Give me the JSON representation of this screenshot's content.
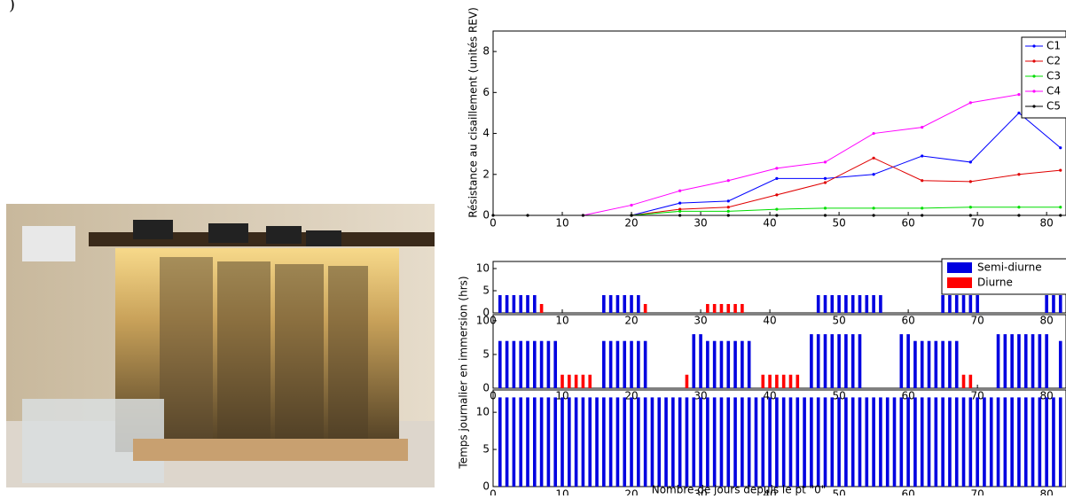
{
  "caption_fragment": ")",
  "chart_data": [
    {
      "type": "line",
      "ylabel": "Résistance au cisaillement (unités REV)",
      "x": [
        0,
        5,
        13,
        20,
        27,
        34,
        41,
        48,
        55,
        62,
        69,
        76,
        82
      ],
      "xlim": [
        0,
        82.8
      ],
      "xticks": [
        0,
        10,
        20,
        30,
        40,
        50,
        60,
        70,
        80
      ],
      "ylim": [
        0,
        9
      ],
      "yticks": [
        0,
        2,
        4,
        6,
        8
      ],
      "legend": "upper right",
      "series": [
        {
          "name": "C1",
          "color": "#0000ff",
          "values": [
            null,
            null,
            null,
            0,
            0.6,
            0.7,
            1.8,
            1.8,
            2.0,
            2.9,
            2.6,
            5.0,
            3.3
          ]
        },
        {
          "name": "C2",
          "color": "#e00000",
          "values": [
            null,
            null,
            null,
            0,
            0.3,
            0.4,
            1.0,
            1.6,
            2.8,
            1.7,
            1.65,
            2.0,
            2.2
          ]
        },
        {
          "name": "C3",
          "color": "#00dd00",
          "values": [
            null,
            null,
            null,
            0,
            0.2,
            0.2,
            0.3,
            0.35,
            0.35,
            0.35,
            0.4,
            0.4,
            0.4
          ]
        },
        {
          "name": "C4",
          "color": "#ff00ff",
          "values": [
            null,
            null,
            0,
            0.5,
            1.2,
            1.7,
            2.3,
            2.6,
            4.0,
            4.3,
            5.5,
            5.9,
            null
          ]
        },
        {
          "name": "C5",
          "color": "#000000",
          "values": [
            0,
            0,
            0,
            0,
            0,
            0,
            0,
            0,
            0,
            0,
            0,
            0,
            0
          ]
        }
      ]
    },
    {
      "type": "bar",
      "ylabel": "Temps journalier en immersion (hrs)",
      "xlabel": "Nombre de jours depuis le pt \"0\"",
      "xlim": [
        0,
        82.8
      ],
      "xticks": [
        0,
        10,
        20,
        30,
        40,
        50,
        60,
        70,
        80
      ],
      "legend": "upper right",
      "series": [
        {
          "name": "Semi-diurne",
          "color": "#0000e0"
        },
        {
          "name": "Diurne",
          "color": "#ff0000"
        }
      ],
      "panels": [
        {
          "ylim": [
            0,
            11.6
          ],
          "yticks": [
            0,
            5,
            10
          ],
          "bars": [
            {
              "x": [
                1,
                2,
                3,
                4,
                5,
                6,
                16,
                17,
                18,
                19,
                20,
                21,
                47,
                48,
                49,
                50,
                51,
                52,
                53,
                54,
                55,
                56,
                65,
                66,
                67,
                68,
                69,
                70,
                80,
                81,
                82
              ],
              "values": [
                4,
                4,
                4,
                4,
                4,
                4,
                4,
                4,
                4,
                4,
                4,
                4,
                4,
                4,
                4,
                4,
                4,
                4,
                4,
                4,
                4,
                4,
                4,
                4,
                4,
                4,
                4,
                4,
                4,
                4,
                4
              ]
            },
            {
              "x": [
                7,
                22,
                31,
                32,
                33,
                34,
                35,
                36
              ],
              "values": [
                2,
                2,
                2,
                2,
                2,
                2,
                2,
                2
              ]
            }
          ]
        },
        {
          "ylim": [
            0,
            10.9
          ],
          "yticks": [
            0,
            5,
            10
          ],
          "bars": [
            {
              "x": [
                1,
                2,
                3,
                4,
                5,
                6,
                7,
                8,
                9,
                16,
                17,
                18,
                19,
                20,
                21,
                22,
                29,
                30,
                31,
                32,
                33,
                34,
                35,
                36,
                37,
                46,
                47,
                48,
                49,
                50,
                51,
                52,
                53,
                59,
                60,
                61,
                62,
                63,
                64,
                65,
                66,
                67,
                73,
                74,
                75,
                76,
                77,
                78,
                79,
                80,
                82
              ],
              "values": [
                7,
                7,
                7,
                7,
                7,
                7,
                7,
                7,
                7,
                7,
                7,
                7,
                7,
                7,
                7,
                7,
                8,
                8,
                7,
                7,
                7,
                7,
                7,
                7,
                7,
                8,
                8,
                8,
                8,
                8,
                8,
                8,
                8,
                8,
                8,
                7,
                7,
                7,
                7,
                7,
                7,
                7,
                8,
                8,
                8,
                8,
                8,
                8,
                8,
                8,
                7
              ]
            },
            {
              "x": [
                10,
                11,
                12,
                13,
                14,
                28,
                39,
                40,
                41,
                42,
                43,
                44,
                68,
                69
              ],
              "values": [
                2,
                2,
                2,
                2,
                2,
                2,
                2,
                2,
                2,
                2,
                2,
                2,
                2,
                2
              ]
            }
          ]
        },
        {
          "ylim": [
            0,
            13
          ],
          "yticks": [
            0,
            5,
            10
          ],
          "bars": [
            {
              "x": [
                1,
                2,
                3,
                4,
                5,
                6,
                7,
                8,
                9,
                10,
                11,
                12,
                13,
                14,
                15,
                16,
                17,
                18,
                19,
                20,
                21,
                22,
                23,
                24,
                25,
                26,
                27,
                28,
                29,
                30,
                31,
                32,
                33,
                34,
                35,
                36,
                37,
                38,
                39,
                40,
                41,
                42,
                43,
                44,
                45,
                46,
                47,
                48,
                49,
                50,
                51,
                52,
                53,
                54,
                55,
                56,
                57,
                58,
                59,
                60,
                61,
                62,
                63,
                64,
                65,
                66,
                67,
                68,
                69,
                70,
                71,
                72,
                73,
                74,
                75,
                76,
                77,
                78,
                79,
                80,
                81,
                82
              ],
              "values": [
                12,
                12,
                12,
                12,
                12,
                12,
                12,
                12,
                12,
                12,
                12,
                12,
                12,
                12,
                12,
                12,
                12,
                12,
                12,
                12,
                12,
                12,
                12,
                12,
                12,
                12,
                12,
                12,
                12,
                12,
                12,
                12,
                12,
                12,
                12,
                12,
                12,
                12,
                12,
                12,
                12,
                12,
                12,
                12,
                12,
                12,
                12,
                12,
                12,
                12,
                12,
                12,
                12,
                12,
                12,
                12,
                12,
                12,
                12,
                12,
                12,
                12,
                12,
                12,
                12,
                12,
                12,
                12,
                12,
                12,
                12,
                12,
                12,
                12,
                12,
                12,
                12,
                12,
                12,
                12,
                12,
                12
              ]
            },
            {
              "x": [],
              "values": []
            }
          ]
        }
      ]
    }
  ]
}
